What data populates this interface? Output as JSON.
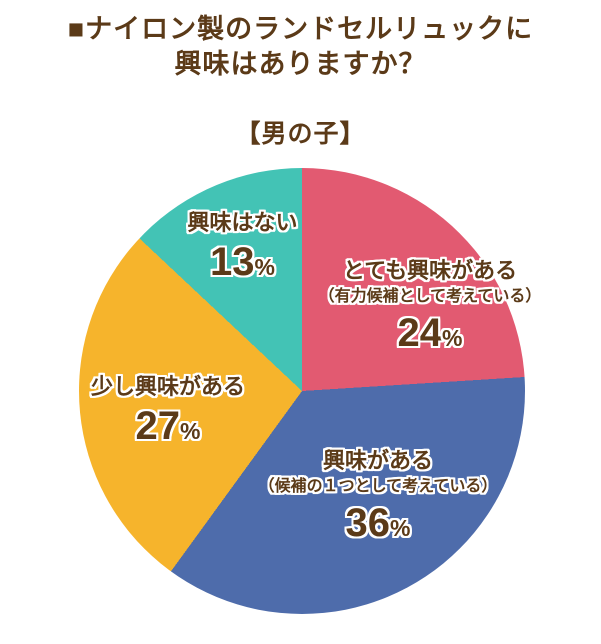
{
  "page": {
    "title_line1": "■ナイロン製のランドセルリュックに",
    "title_line2": "興味はありますか？",
    "group": "【男の子】"
  },
  "colors": {
    "title_text": "#5b3a18",
    "label_text": "#5b3a18",
    "background": "#ffffff"
  },
  "chart_data": {
    "type": "pie",
    "title": "ナイロン製のランドセルリュックに興味はありますか？",
    "group": "男の子",
    "direction": "clockwise",
    "start_angle_deg": 0,
    "legend_position": "on-slice",
    "slices": [
      {
        "label": "とても興味がある",
        "sublabel": "（有力候補として考えている）",
        "value": 24,
        "unit": "%",
        "color": "#e25a71"
      },
      {
        "label": "興味がある",
        "sublabel": "（候補の１つとして考えている）",
        "value": 36,
        "unit": "%",
        "color": "#4e6cab"
      },
      {
        "label": "少し興味がある",
        "sublabel": "",
        "value": 27,
        "unit": "%",
        "color": "#f6b42c"
      },
      {
        "label": "興味はない",
        "sublabel": "",
        "value": 13,
        "unit": "%",
        "color": "#43c3b5"
      }
    ]
  }
}
